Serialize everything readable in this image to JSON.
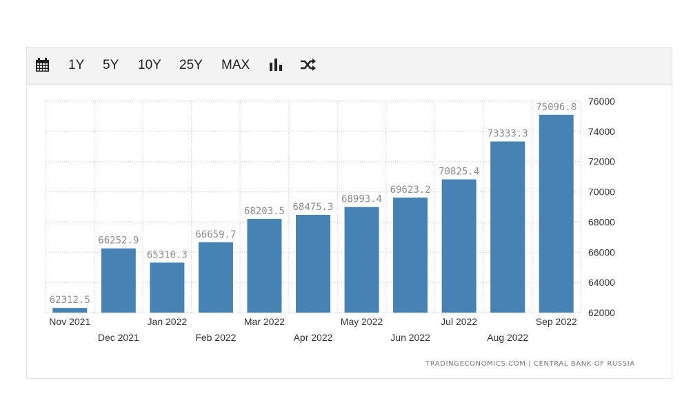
{
  "toolbar": {
    "items": [
      {
        "icon": "calendar-icon"
      },
      {
        "label": "1Y"
      },
      {
        "label": "5Y"
      },
      {
        "label": "10Y"
      },
      {
        "label": "25Y"
      },
      {
        "label": "MAX"
      },
      {
        "icon": "bar-chart-icon"
      },
      {
        "icon": "shuffle-icon"
      }
    ]
  },
  "source": "TRADINGECONOMICS.COM | CENTRAL BANK OF RUSSIA",
  "colors": {
    "bar": "#4682b4",
    "grid": "#cccccc",
    "label": "#8c8c8c",
    "axis_text": "#333333"
  },
  "chart_data": {
    "type": "bar",
    "categories": [
      "Nov 2021",
      "Dec 2021",
      "Jan 2022",
      "Feb 2022",
      "Mar 2022",
      "Apr 2022",
      "May 2022",
      "Jun 2022",
      "Jul 2022",
      "Aug 2022",
      "Sep 2022"
    ],
    "values": [
      62312.5,
      66252.9,
      65310.3,
      66659.7,
      68203.5,
      68475.3,
      68993.4,
      69623.2,
      70825.4,
      73333.3,
      75096.8
    ],
    "data_labels": [
      "62312.5",
      "66252.9",
      "65310.3",
      "66659.7",
      "68203.5",
      "68475.3",
      "68993.4",
      "69623.2",
      "70825.4",
      "73333.3",
      "75096.8"
    ],
    "yticks": [
      62000,
      64000,
      66000,
      68000,
      70000,
      72000,
      74000,
      76000
    ],
    "ylim": [
      62000,
      76000
    ],
    "y_axis_side": "right",
    "grid": true,
    "title": "",
    "xlabel": "",
    "ylabel": ""
  }
}
